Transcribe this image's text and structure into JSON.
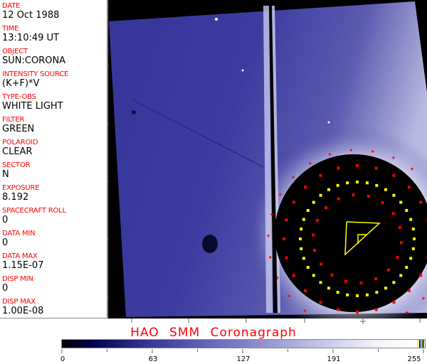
{
  "info_panel": {
    "fields": [
      {
        "label": "DATE",
        "value": "12 Oct 1988"
      },
      {
        "label": "TIME",
        "value": "13:10:49 UT"
      },
      {
        "label": "OBJECT",
        "value": "SUN:CORONA"
      },
      {
        "label": "INTENSITY SOURCE",
        "value": "(K+F)*V"
      },
      {
        "label": "TYPE-OBS",
        "value": "WHITE LIGHT"
      },
      {
        "label": "FILTER",
        "value": "GREEN"
      },
      {
        "label": "POLAROID",
        "value": "CLEAR"
      },
      {
        "label": "SECTOR",
        "value": "N"
      },
      {
        "label": "EXPOSURE",
        "value": "8.192"
      },
      {
        "label": "SPACECRAFT ROLL",
        "value": "0"
      },
      {
        "label": "DATA MIN",
        "value": "0"
      },
      {
        "label": "DATA MAX",
        "value": "1.15E-07"
      },
      {
        "label": "DISP MIN",
        "value": "0"
      },
      {
        "label": "DISP MAX",
        "value": "1.00E-08"
      }
    ]
  },
  "footer": {
    "title": "HAO  SMM  Coronagraph",
    "colorbar_ticks": [
      "0",
      "63",
      "127",
      "191",
      "255"
    ]
  },
  "colors": {
    "label": "#ff0000",
    "corona_blue": "#3a3a98",
    "marker_red": "#ff0000",
    "marker_yellow": "#ffff00"
  }
}
